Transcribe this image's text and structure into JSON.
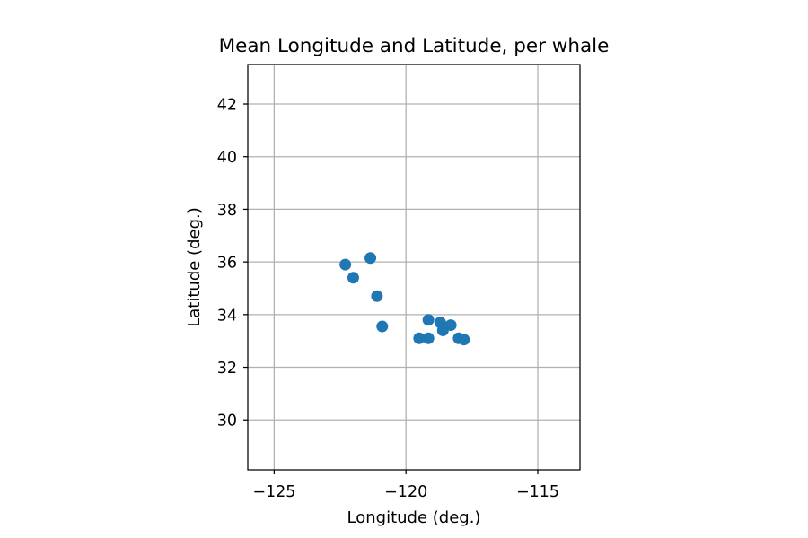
{
  "chart_data": {
    "type": "scatter",
    "title": "Mean Longitude and Latitude, per whale",
    "xlabel": "Longitude (deg.)",
    "ylabel": "Latitude (deg.)",
    "xlim": [
      -126,
      -113.4
    ],
    "ylim": [
      28.1,
      43.5
    ],
    "xticks": [
      -125,
      -120,
      -115
    ],
    "xtick_labels": [
      "−125",
      "−120",
      "−115"
    ],
    "yticks": [
      30,
      32,
      34,
      36,
      38,
      40,
      42
    ],
    "ytick_labels": [
      "30",
      "32",
      "34",
      "36",
      "38",
      "40",
      "42"
    ],
    "grid": true,
    "legend": false,
    "marker_color": "#1f77b4",
    "points": [
      {
        "x": -122.3,
        "y": 35.9
      },
      {
        "x": -122.0,
        "y": 35.4
      },
      {
        "x": -121.35,
        "y": 36.15
      },
      {
        "x": -121.1,
        "y": 34.7
      },
      {
        "x": -120.9,
        "y": 33.55
      },
      {
        "x": -119.5,
        "y": 33.1
      },
      {
        "x": -119.15,
        "y": 33.8
      },
      {
        "x": -119.15,
        "y": 33.1
      },
      {
        "x": -118.7,
        "y": 33.7
      },
      {
        "x": -118.6,
        "y": 33.4
      },
      {
        "x": -118.3,
        "y": 33.6
      },
      {
        "x": -118.0,
        "y": 33.1
      },
      {
        "x": -117.8,
        "y": 33.05
      }
    ]
  }
}
